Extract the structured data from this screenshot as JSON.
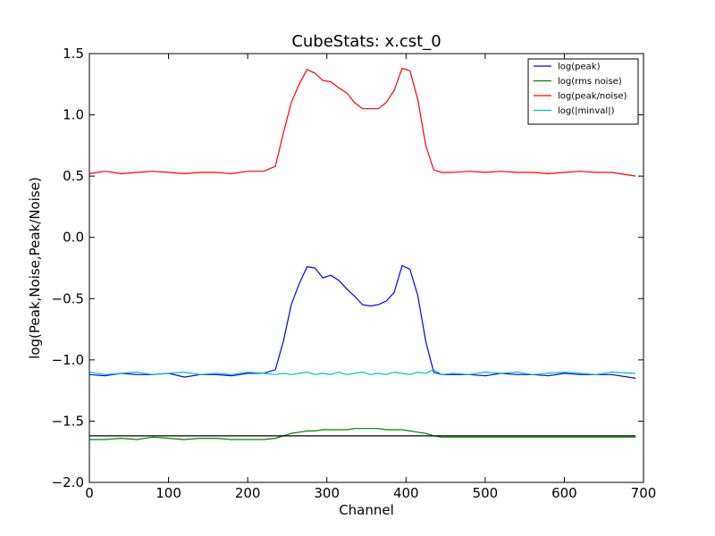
{
  "chart_data": {
    "type": "line",
    "title": "CubeStats: x.cst_0",
    "xlabel": "Channel",
    "ylabel": "log(Peak,Noise,Peak/Noise)",
    "xlim": [
      0,
      700
    ],
    "ylim": [
      -2.0,
      1.5
    ],
    "x_ticks": [
      0,
      100,
      200,
      300,
      400,
      500,
      600,
      700
    ],
    "x_tick_labels": [
      "0",
      "100",
      "200",
      "300",
      "400",
      "500",
      "600",
      "700"
    ],
    "y_ticks": [
      -2.0,
      -1.5,
      -1.0,
      -0.5,
      0.0,
      0.5,
      1.0,
      1.5
    ],
    "y_tick_labels": [
      "−2.0",
      "−1.5",
      "−1.0",
      "−0.5",
      "0.0",
      "0.5",
      "1.0",
      "1.5"
    ],
    "grid": false,
    "legend_position": "top-right",
    "x": [
      0,
      20,
      40,
      60,
      80,
      100,
      120,
      140,
      160,
      180,
      200,
      220,
      235,
      245,
      255,
      265,
      275,
      285,
      295,
      305,
      315,
      325,
      335,
      345,
      355,
      365,
      375,
      385,
      395,
      405,
      415,
      425,
      435,
      445,
      460,
      480,
      500,
      520,
      540,
      560,
      580,
      600,
      620,
      640,
      660,
      690
    ],
    "series": [
      {
        "name": "log(peak)",
        "color": "#0000ff",
        "values": [
          -1.12,
          -1.13,
          -1.11,
          -1.12,
          -1.12,
          -1.11,
          -1.14,
          -1.12,
          -1.12,
          -1.13,
          -1.11,
          -1.11,
          -1.08,
          -0.85,
          -0.55,
          -0.38,
          -0.24,
          -0.25,
          -0.33,
          -0.31,
          -0.35,
          -0.42,
          -0.48,
          -0.55,
          -0.56,
          -0.55,
          -0.52,
          -0.45,
          -0.23,
          -0.26,
          -0.48,
          -0.85,
          -1.1,
          -1.12,
          -1.12,
          -1.12,
          -1.13,
          -1.11,
          -1.12,
          -1.12,
          -1.13,
          -1.11,
          -1.12,
          -1.12,
          -1.12,
          -1.15
        ]
      },
      {
        "name": "log(rms noise)",
        "color": "#008000",
        "values": [
          -1.65,
          -1.65,
          -1.64,
          -1.65,
          -1.63,
          -1.64,
          -1.65,
          -1.64,
          -1.64,
          -1.65,
          -1.65,
          -1.65,
          -1.64,
          -1.62,
          -1.6,
          -1.59,
          -1.58,
          -1.58,
          -1.57,
          -1.57,
          -1.57,
          -1.57,
          -1.56,
          -1.56,
          -1.56,
          -1.56,
          -1.57,
          -1.57,
          -1.57,
          -1.58,
          -1.59,
          -1.6,
          -1.62,
          -1.63,
          -1.63,
          -1.63,
          -1.63,
          -1.63,
          -1.63,
          -1.63,
          -1.63,
          -1.63,
          -1.63,
          -1.63,
          -1.63,
          -1.63
        ]
      },
      {
        "name": "log(peak/noise)",
        "color": "#ff0000",
        "values": [
          0.52,
          0.54,
          0.52,
          0.53,
          0.54,
          0.53,
          0.52,
          0.53,
          0.53,
          0.52,
          0.54,
          0.54,
          0.58,
          0.85,
          1.1,
          1.25,
          1.37,
          1.34,
          1.28,
          1.27,
          1.22,
          1.18,
          1.1,
          1.05,
          1.05,
          1.05,
          1.1,
          1.2,
          1.38,
          1.36,
          1.12,
          0.75,
          0.55,
          0.53,
          0.53,
          0.54,
          0.53,
          0.54,
          0.53,
          0.53,
          0.52,
          0.53,
          0.54,
          0.53,
          0.53,
          0.5
        ]
      },
      {
        "name": "log(|minval|)",
        "color": "#00bfbf",
        "values": [
          -1.1,
          -1.12,
          -1.11,
          -1.1,
          -1.12,
          -1.11,
          -1.1,
          -1.12,
          -1.11,
          -1.12,
          -1.1,
          -1.11,
          -1.12,
          -1.11,
          -1.12,
          -1.11,
          -1.1,
          -1.12,
          -1.11,
          -1.12,
          -1.1,
          -1.12,
          -1.11,
          -1.1,
          -1.12,
          -1.11,
          -1.12,
          -1.1,
          -1.11,
          -1.12,
          -1.1,
          -1.11,
          -1.08,
          -1.12,
          -1.11,
          -1.12,
          -1.1,
          -1.11,
          -1.1,
          -1.12,
          -1.11,
          -1.1,
          -1.11,
          -1.12,
          -1.1,
          -1.11
        ]
      }
    ],
    "reference_lines": [
      {
        "color": "#000000",
        "y": -1.62,
        "x_range": [
          0,
          690
        ]
      }
    ]
  }
}
